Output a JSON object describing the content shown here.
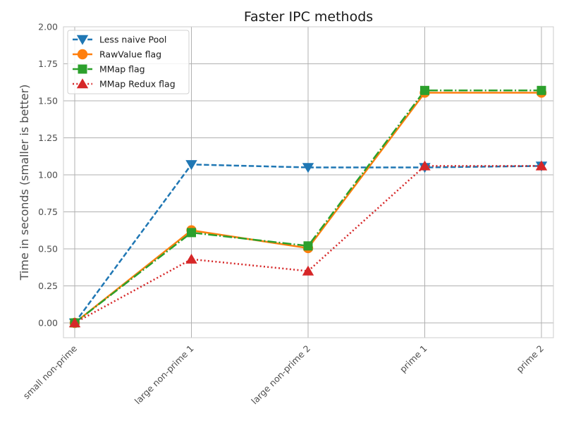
{
  "chart_data": {
    "type": "line",
    "title": "Faster IPC methods",
    "xlabel": "",
    "ylabel": "Time in seconds (smaller is better)",
    "categories": [
      "small non-prime",
      "large non-prime 1",
      "large non-prime 2",
      "prime 1",
      "prime 2"
    ],
    "ylim": [
      -0.1,
      2.0
    ],
    "yticks": [
      0.0,
      0.25,
      0.5,
      0.75,
      1.0,
      1.25,
      1.5,
      1.75,
      2.0
    ],
    "ytick_labels": [
      "0.00",
      "0.25",
      "0.50",
      "0.75",
      "1.00",
      "1.25",
      "1.50",
      "1.75",
      "2.00"
    ],
    "grid": true,
    "legend_position": "top-left",
    "series": [
      {
        "name": "Less naive Pool",
        "values": [
          0.0,
          1.07,
          1.05,
          1.05,
          1.06
        ],
        "color": "#1f77b4",
        "line_style": "dashed",
        "marker": "triangle-down"
      },
      {
        "name": "RawValue flag",
        "values": [
          0.0,
          0.625,
          0.505,
          1.555,
          1.555
        ],
        "color": "#ff7f0e",
        "line_style": "solid",
        "marker": "circle"
      },
      {
        "name": "MMap flag",
        "values": [
          0.0,
          0.61,
          0.52,
          1.57,
          1.57
        ],
        "color": "#2ca02c",
        "line_style": "dash-dot",
        "marker": "square"
      },
      {
        "name": "MMap Redux flag",
        "values": [
          0.0,
          0.43,
          0.35,
          1.06,
          1.06
        ],
        "color": "#d62728",
        "line_style": "dotted",
        "marker": "triangle-up"
      }
    ]
  }
}
